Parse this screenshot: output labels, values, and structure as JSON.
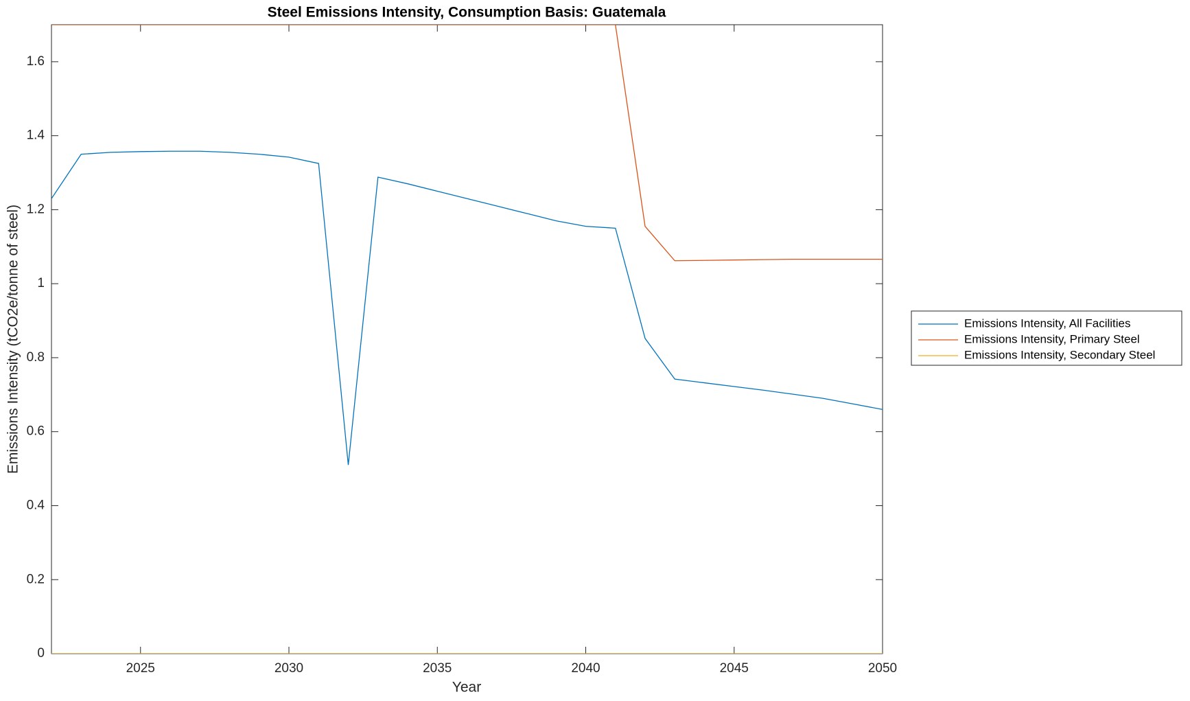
{
  "chart_data": {
    "type": "line",
    "title": "Steel Emissions Intensity, Consumption Basis: Guatemala",
    "xlabel": "Year",
    "ylabel": "Emissions Intensity (tCO2e/tonne of steel)",
    "x": [
      2022,
      2023,
      2024,
      2025,
      2026,
      2027,
      2028,
      2029,
      2030,
      2031,
      2032,
      2033,
      2034,
      2035,
      2036,
      2037,
      2038,
      2039,
      2040,
      2041,
      2042,
      2043,
      2044,
      2045,
      2046,
      2047,
      2048,
      2049,
      2050
    ],
    "series": [
      {
        "name": "Emissions Intensity, All Facilities",
        "color": "#0072bd",
        "values": [
          1.23,
          1.35,
          1.355,
          1.357,
          1.358,
          1.358,
          1.355,
          1.35,
          1.342,
          1.325,
          0.51,
          1.288,
          1.27,
          1.25,
          1.23,
          1.21,
          1.19,
          1.17,
          1.155,
          1.15,
          0.852,
          0.742,
          0.732,
          0.722,
          0.712,
          0.701,
          0.69,
          0.675,
          0.66
        ]
      },
      {
        "name": "Emissions Intensity, Primary Steel",
        "color": "#d95319",
        "values": [
          1.7,
          1.7,
          1.7,
          1.7,
          1.7,
          1.7,
          1.7,
          1.7,
          1.7,
          1.7,
          1.7,
          1.7,
          1.7,
          1.7,
          1.7,
          1.7,
          1.7,
          1.7,
          1.7,
          1.7,
          1.155,
          1.062,
          1.063,
          1.064,
          1.065,
          1.066,
          1.066,
          1.066,
          1.066
        ]
      },
      {
        "name": "Emissions Intensity, Secondary Steel",
        "color": "#edb120",
        "values": [
          0,
          0,
          0,
          0,
          0,
          0,
          0,
          0,
          0,
          0,
          0,
          0,
          0,
          0,
          0,
          0,
          0,
          0,
          0,
          0,
          0,
          0,
          0,
          0,
          0,
          0,
          0,
          0,
          0
        ]
      }
    ],
    "xlim": [
      2022,
      2050
    ],
    "xticks": [
      2025,
      2030,
      2035,
      2040,
      2045,
      2050
    ],
    "ylim": [
      0,
      1.7
    ],
    "yticks": [
      0,
      0.2,
      0.4,
      0.6,
      0.8,
      1,
      1.2,
      1.4,
      1.6
    ],
    "legend": "east outside"
  }
}
